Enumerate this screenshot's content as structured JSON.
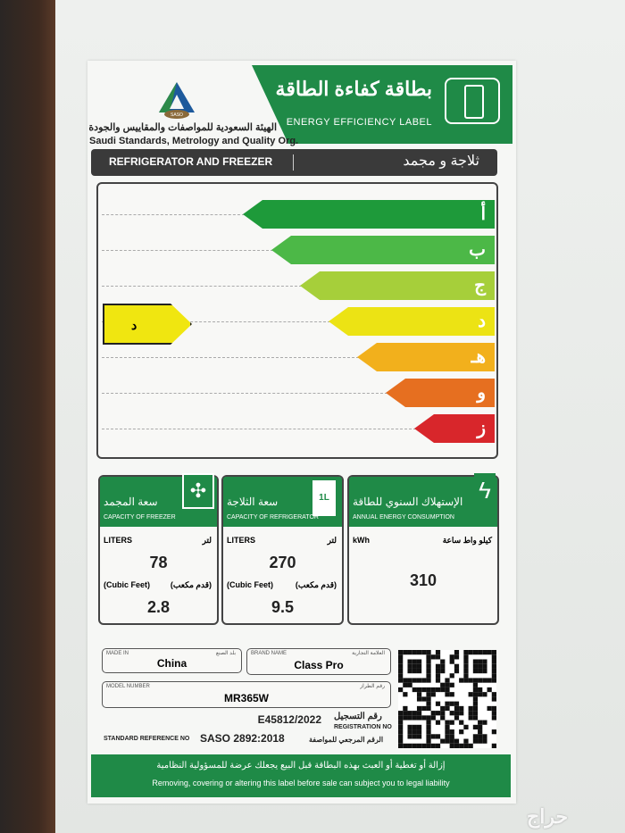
{
  "header": {
    "title_ar": "بطاقة كفاءة الطاقة",
    "title_en": "ENERGY EFFICIENCY LABEL",
    "logo_text": "SASO",
    "org_ar": "الهيئة السعودية للمواصفات والمقاييس والجودة",
    "org_en": "Saudi Standards, Metrology and Quality Org."
  },
  "product_type": {
    "en": "REFRIGERATOR AND FREEZER",
    "ar": "ثلاجة و مجمد"
  },
  "scale": {
    "classes": [
      {
        "letter": "أ",
        "color": "#1e9a3a"
      },
      {
        "letter": "ب",
        "color": "#4cb847"
      },
      {
        "letter": "ج",
        "color": "#a6cf3a"
      },
      {
        "letter": "د",
        "color": "#ece314"
      },
      {
        "letter": "هـ",
        "color": "#f2b01c"
      },
      {
        "letter": "و",
        "color": "#e66f20"
      },
      {
        "letter": "ز",
        "color": "#d8262b"
      }
    ],
    "rating": "د",
    "rating_color": "#f0e610"
  },
  "capacities": {
    "freezer": {
      "title_ar": "سعة المجمد",
      "title_en": "CAPACITY OF FREEZER",
      "unit_en": "LITERS",
      "unit_ar": "لتر",
      "liters": "78",
      "cf_en": "(Cubic Feet)",
      "cf_ar": "(قدم مكعب)",
      "cubic_feet": "2.8",
      "icon": "expand-arrows-icon"
    },
    "refrigerator": {
      "title_ar": "سعة الثلاجة",
      "title_en": "CAPACITY OF REFRIGERATOR",
      "unit_en": "LITERS",
      "unit_ar": "لتر",
      "liters": "270",
      "cf_en": "(Cubic Feet)",
      "cf_ar": "(قدم مكعب)",
      "cubic_feet": "9.5",
      "icon": "milk-carton-icon",
      "icon_text": "1L"
    },
    "energy": {
      "title_ar": "الإستهلاك السنوي للطاقة",
      "title_en": "ANNUAL ENERGY CONSUMPTION",
      "unit_en": "kWh",
      "unit_ar": "كيلو واط ساعة",
      "value": "310",
      "icon": "lightning-icon"
    }
  },
  "details": {
    "made_in_label_en": "MADE IN",
    "made_in_label_ar": "بلد الصنع",
    "made_in": "China",
    "brand_label_en": "BRAND NAME",
    "brand_label_ar": "العلامة التجارية",
    "brand": "Class Pro",
    "model_label_en": "MODEL NUMBER",
    "model_label_ar": "رقم الطراز",
    "model": "MR365W",
    "registration_no": "E45812/2022",
    "registration_label_ar": "رقم التسجيل",
    "registration_label_en": "REGISTRATION NO",
    "standard_label_en": "STANDARD REFERENCE NO",
    "standard": "SASO 2892:2018",
    "standard_label_ar": "الرقم المرجعي للمواصفة"
  },
  "footer": {
    "ar": "إزالة أو تغطية أو العبث بهذه البطاقة قبل البيع يجعلك عرضة للمسؤولية النظامية",
    "en": "Removing, covering or altering this label before sale can subject you to legal liability"
  },
  "watermark": "حراج"
}
